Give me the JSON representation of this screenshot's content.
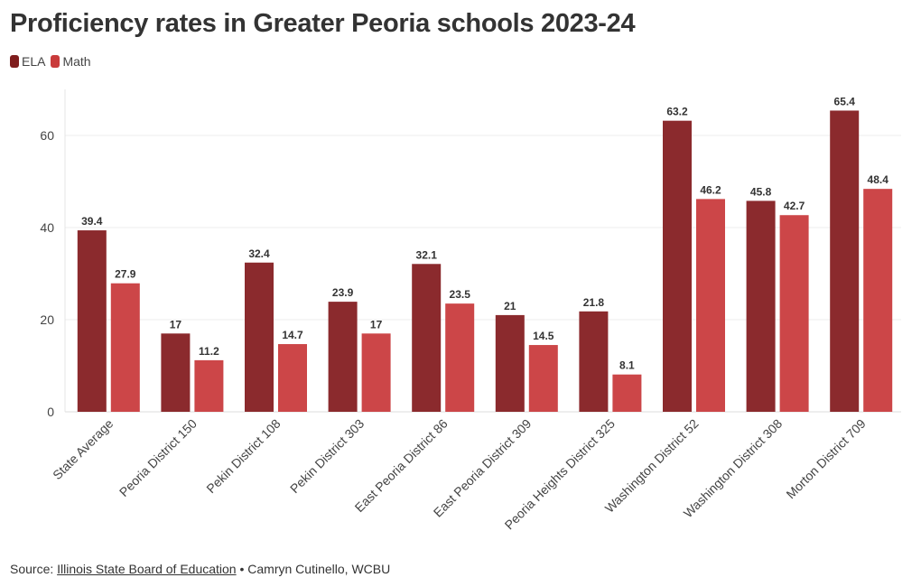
{
  "title": "Proficiency rates in Greater Peoria schools 2023-24",
  "legend": [
    {
      "name": "ELA",
      "color": "#7f1d1d"
    },
    {
      "name": "Math",
      "color": "#c93b3b"
    }
  ],
  "footer": {
    "prefix": "Source: ",
    "source_link": "Illinois State Board of Education",
    "suffix": " • Camryn Cutinello, WCBU"
  },
  "chart_data": {
    "type": "bar",
    "title": "Proficiency rates in Greater Peoria schools 2023-24",
    "xlabel": "",
    "ylabel": "",
    "ylim": [
      0,
      70
    ],
    "yticks": [
      0,
      20,
      40,
      60
    ],
    "grid": true,
    "legend_position": "top-left",
    "categories": [
      "State Average",
      "Peoria District 150",
      "Pekin District 108",
      "Pekin District 303",
      "East Peoria District 86",
      "East Peoria District 309",
      "Peoria Heights District 325",
      "Washington District 52",
      "Washington District 308",
      "Morton District 709"
    ],
    "series": [
      {
        "name": "ELA",
        "color": "#8b2a2d",
        "values": [
          39.4,
          17,
          32.4,
          23.9,
          32.1,
          21,
          21.8,
          63.2,
          45.8,
          65.4
        ]
      },
      {
        "name": "Math",
        "color": "#cc4648",
        "values": [
          27.9,
          11.2,
          14.7,
          17,
          23.5,
          14.5,
          8.1,
          46.2,
          42.7,
          48.4
        ]
      }
    ]
  }
}
